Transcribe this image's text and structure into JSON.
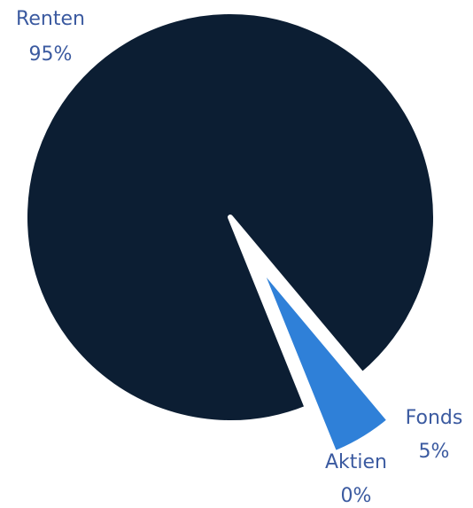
{
  "chart_data": {
    "type": "pie",
    "categories": [
      "Renten",
      "Fonds",
      "Aktien"
    ],
    "values": [
      95,
      5,
      0
    ],
    "value_labels": [
      "95%",
      "5%",
      "0%"
    ],
    "colors": [
      "#0c1e33",
      "#2f80d8",
      "#1b4b8c"
    ]
  }
}
